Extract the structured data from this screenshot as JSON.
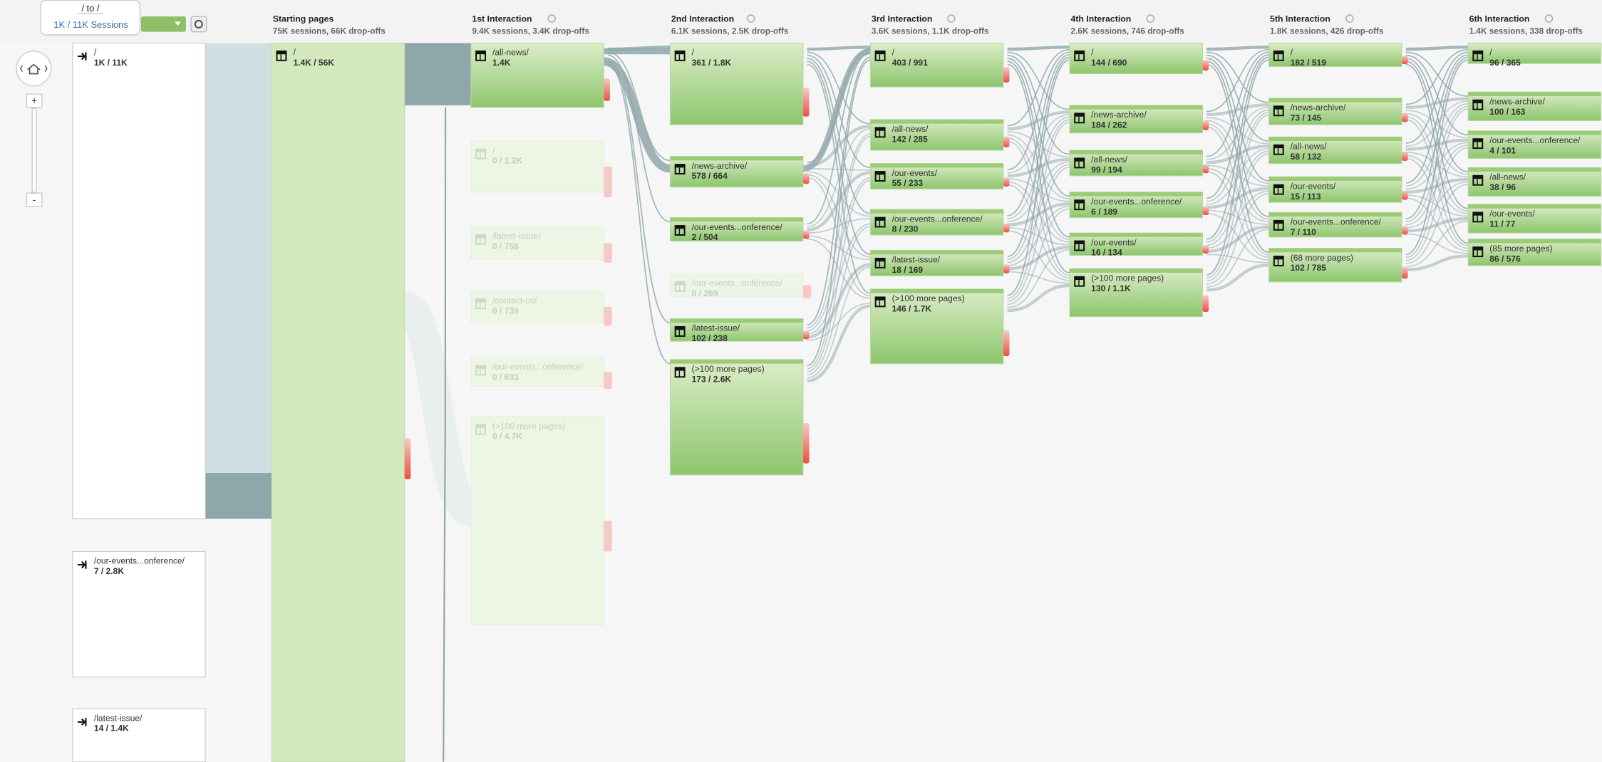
{
  "tooltip": {
    "title": "/ to /",
    "sessions": "1K / 11K Sessions"
  },
  "zoom": {
    "in": "+",
    "out": "-"
  },
  "columns": [
    {
      "nodes": [
        {
          "label": "/",
          "value": "1K / 11K"
        },
        {
          "label": "/our-events...onference/",
          "value": "7 / 2.8K"
        },
        {
          "label": "/latest-issue/",
          "value": "14 / 1.4K"
        }
      ]
    },
    {
      "title": "Starting pages",
      "subtitle": "75K sessions, 66K drop-offs",
      "nodes": [
        {
          "label": "/",
          "value": "1.4K / 56K"
        }
      ]
    },
    {
      "title": "1st Interaction",
      "subtitle": "9.4K sessions, 3.4K drop-offs",
      "nodes": [
        {
          "label": "/all-news/",
          "value": "1.4K"
        },
        {
          "label": "/",
          "value": "0 / 1.2K",
          "faded": true
        },
        {
          "label": "/latest-issue/",
          "value": "0 / 758",
          "faded": true
        },
        {
          "label": "/contact-us/",
          "value": "0 / 739",
          "faded": true
        },
        {
          "label": "/our-events...onference/",
          "value": "0 / 633",
          "faded": true
        },
        {
          "label": "(>100 more pages)",
          "value": "0 / 4.7K",
          "faded": true
        }
      ]
    },
    {
      "title": "2nd Interaction",
      "subtitle": "6.1K sessions, 2.5K drop-offs",
      "nodes": [
        {
          "label": "/",
          "value": "361 / 1.8K"
        },
        {
          "label": "/news-archive/",
          "value": "578 / 664"
        },
        {
          "label": "/our-events...onference/",
          "value": "2 / 504"
        },
        {
          "label": "/our-events...onference/",
          "value": "0 / 269",
          "faded": true
        },
        {
          "label": "/latest-issue/",
          "value": "102 / 238"
        },
        {
          "label": "(>100 more pages)",
          "value": "173 / 2.6K"
        }
      ]
    },
    {
      "title": "3rd Interaction",
      "subtitle": "3.6K sessions, 1.1K drop-offs",
      "nodes": [
        {
          "label": "/",
          "value": "403 / 991"
        },
        {
          "label": "/all-news/",
          "value": "142 / 285"
        },
        {
          "label": "/our-events/",
          "value": "55 / 233"
        },
        {
          "label": "/our-events...onference/",
          "value": "8 / 230"
        },
        {
          "label": "/latest-issue/",
          "value": "18 / 169"
        },
        {
          "label": "(>100 more pages)",
          "value": "146 / 1.7K"
        }
      ]
    },
    {
      "title": "4th Interaction",
      "subtitle": "2.6K sessions, 746 drop-offs",
      "nodes": [
        {
          "label": "/",
          "value": "144 / 690"
        },
        {
          "label": "/news-archive/",
          "value": "184 / 262"
        },
        {
          "label": "/all-news/",
          "value": "99 / 194"
        },
        {
          "label": "/our-events...onference/",
          "value": "6 / 189"
        },
        {
          "label": "/our-events/",
          "value": "16 / 134"
        },
        {
          "label": "(>100 more pages)",
          "value": "130 / 1.1K"
        }
      ]
    },
    {
      "title": "5th Interaction",
      "subtitle": "1.8K sessions, 426 drop-offs",
      "nodes": [
        {
          "label": "/",
          "value": "182 / 519"
        },
        {
          "label": "/news-archive/",
          "value": "73 / 145"
        },
        {
          "label": "/all-news/",
          "value": "58 / 132"
        },
        {
          "label": "/our-events/",
          "value": "15 / 113"
        },
        {
          "label": "/our-events...onference/",
          "value": "7 / 110"
        },
        {
          "label": "(68 more pages)",
          "value": "102 / 785"
        }
      ]
    },
    {
      "title": "6th Interaction",
      "subtitle": "1.4K sessions, 338 drop-offs",
      "nodes": [
        {
          "label": "/",
          "value": "96 / 365"
        },
        {
          "label": "/news-archive/",
          "value": "100 / 163"
        },
        {
          "label": "/our-events...onference/",
          "value": "4 / 101"
        },
        {
          "label": "/all-news/",
          "value": "38 / 96"
        },
        {
          "label": "/our-events/",
          "value": "11 / 77"
        },
        {
          "label": "(85 more pages)",
          "value": "86 / 576"
        }
      ]
    }
  ]
}
